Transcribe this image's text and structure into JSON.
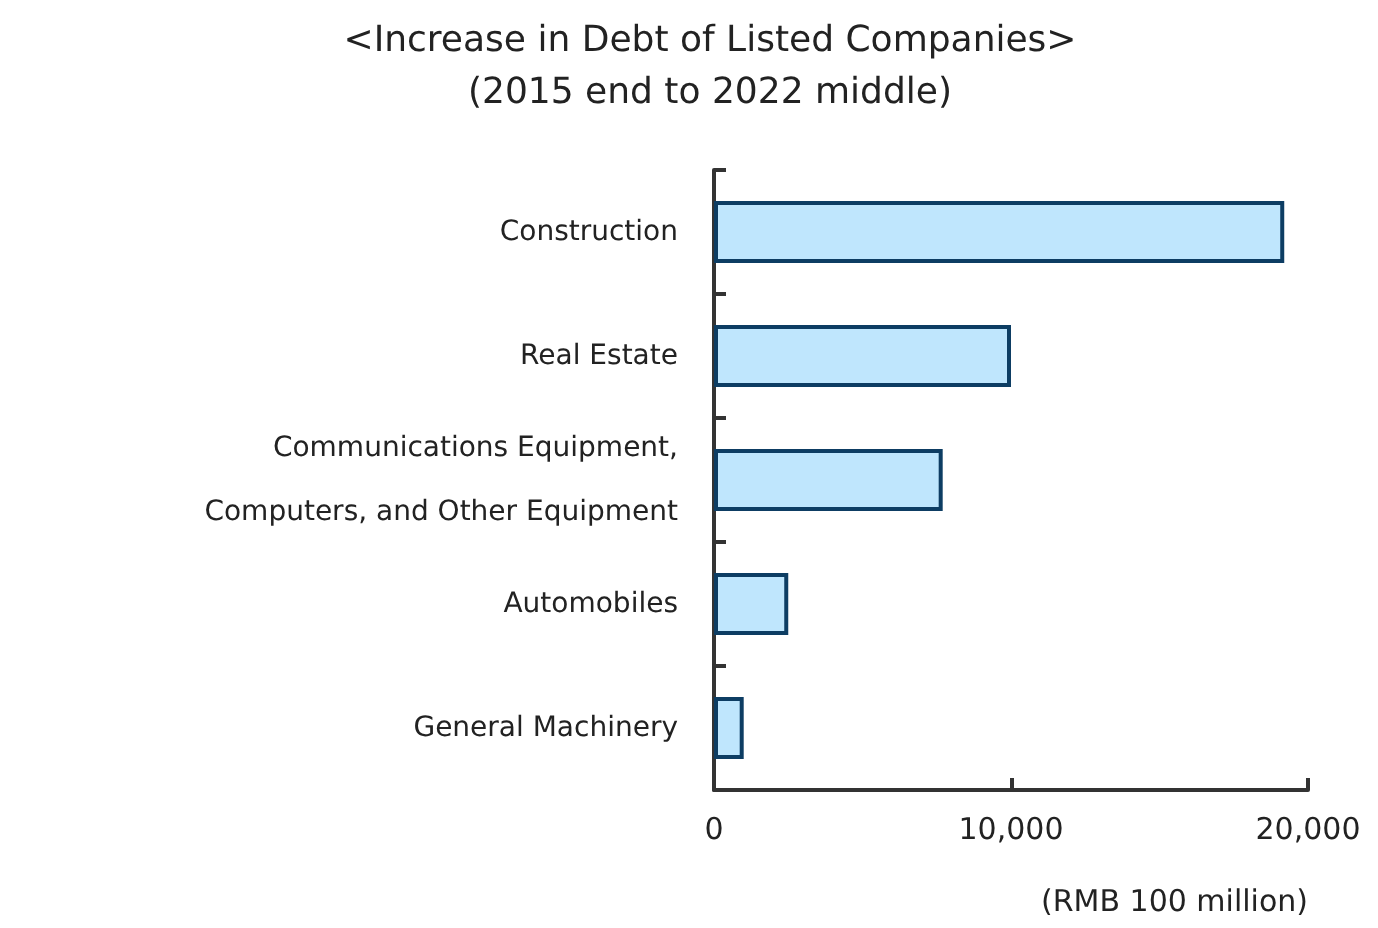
{
  "chart_data": {
    "type": "bar",
    "orientation": "horizontal",
    "title": "<Increase in Debt of Listed Companies>",
    "subtitle": "(2015 end to 2022 middle)",
    "xlabel": "(RMB 100 million)",
    "categories": [
      "Construction",
      "Real Estate",
      "Communications Equipment,\nComputers, and Other Equipment",
      "Automobiles",
      "General Machinery"
    ],
    "values": [
      19200,
      10000,
      7700,
      2500,
      1000
    ],
    "color": "#bfe6fd",
    "xlim": [
      0,
      20000
    ],
    "xticks": [
      {
        "value": 0,
        "label": "0"
      },
      {
        "value": 10000,
        "label": "10,000"
      },
      {
        "value": 20000,
        "label": "20,000"
      }
    ],
    "grid": false
  }
}
